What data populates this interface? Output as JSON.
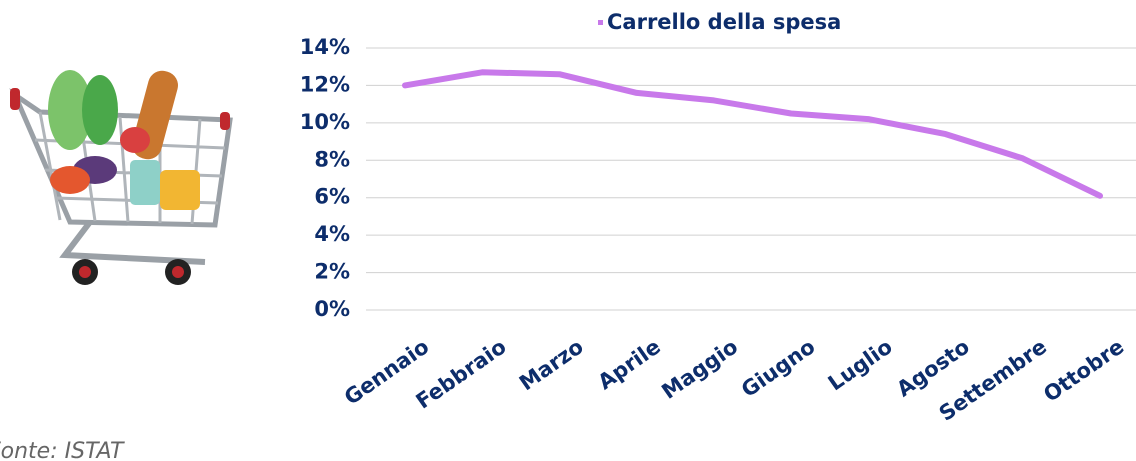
{
  "chart_data": {
    "type": "line",
    "categories": [
      "Gennaio",
      "Febbraio",
      "Marzo",
      "Aprile",
      "Maggio",
      "Giugno",
      "Luglio",
      "Agosto",
      "Settembre",
      "Ottobre"
    ],
    "series": [
      {
        "name": "Carrello della spesa",
        "color": "#c879ea",
        "values": [
          12.0,
          12.7,
          12.6,
          11.6,
          11.2,
          10.5,
          10.2,
          9.4,
          8.1,
          6.1
        ]
      }
    ],
    "ylim": [
      0,
      14
    ],
    "yticks": [
      {
        "value": 0,
        "label": "0%"
      },
      {
        "value": 2,
        "label": "2%"
      },
      {
        "value": 4,
        "label": "4%"
      },
      {
        "value": 6,
        "label": "6%"
      },
      {
        "value": 8,
        "label": "8%"
      },
      {
        "value": 10,
        "label": "10%"
      },
      {
        "value": 12,
        "label": "12%"
      },
      {
        "value": 14,
        "label": "14%"
      }
    ],
    "grid": true,
    "legend": "top",
    "note": "Fonte: ISTAT"
  }
}
